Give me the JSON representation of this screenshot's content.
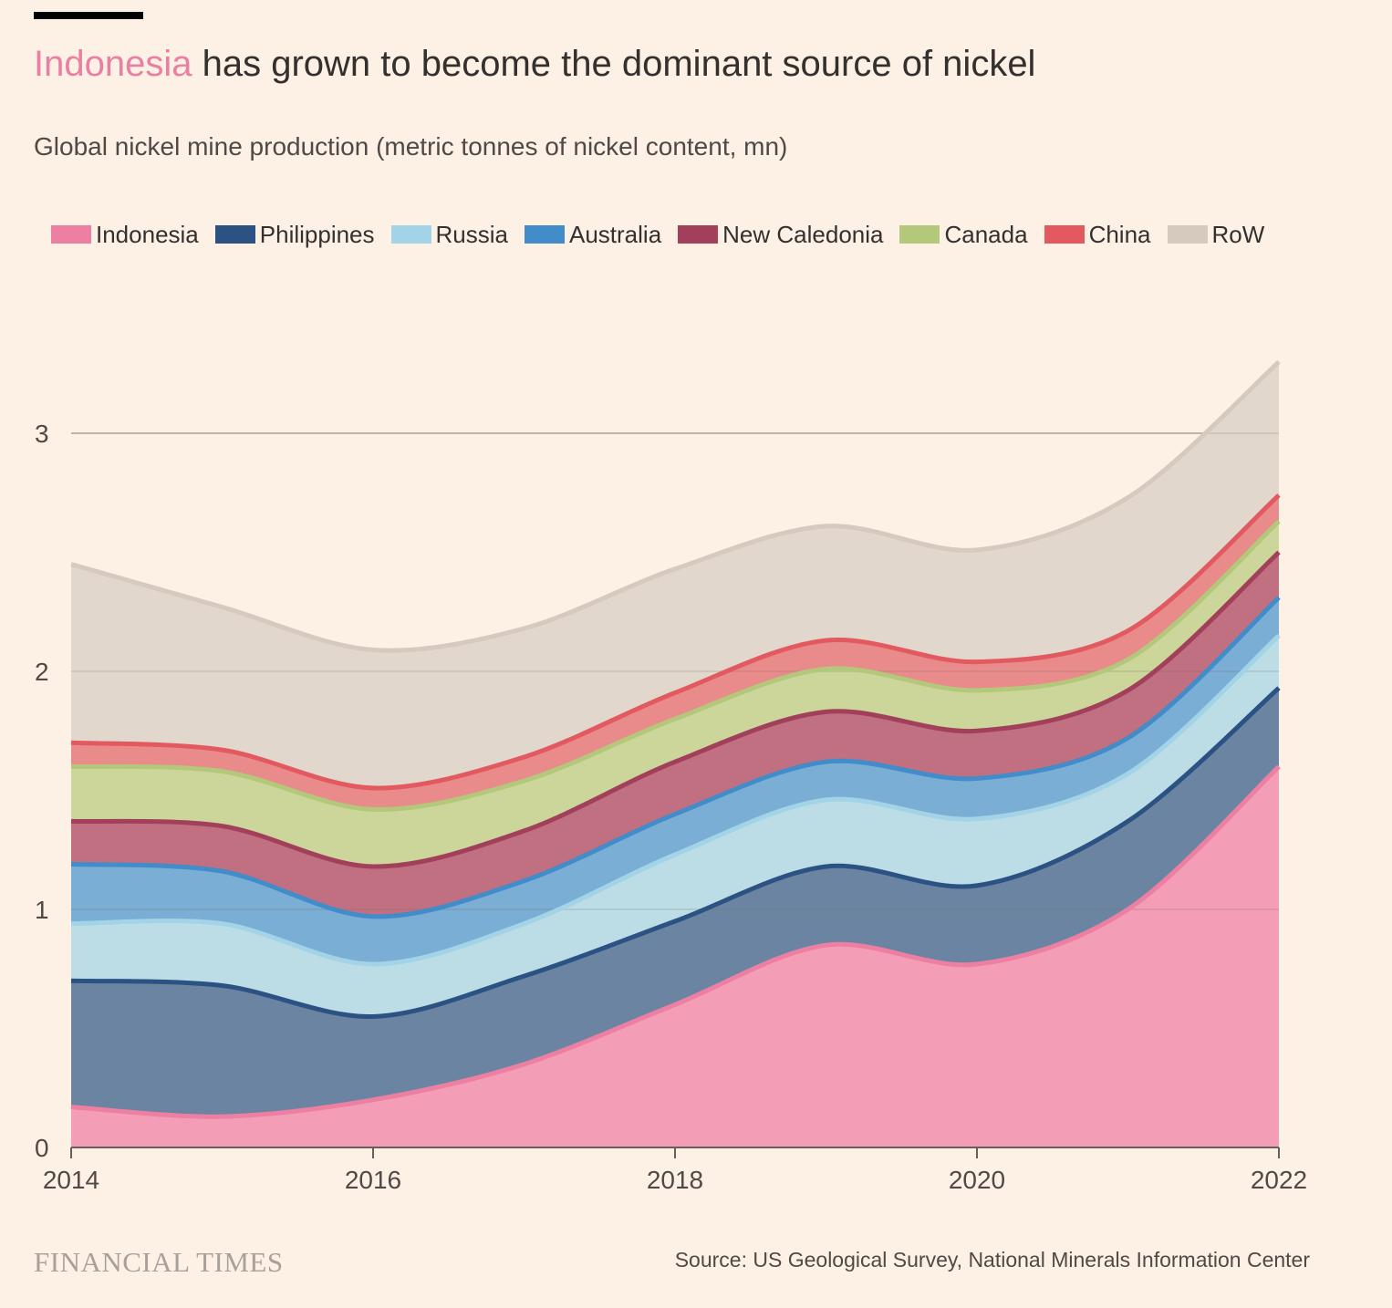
{
  "title": {
    "highlight": "Indonesia",
    "rest": " has grown to become the dominant source of nickel"
  },
  "subtitle": "Global nickel mine production (metric tonnes of nickel content, mn)",
  "footer": {
    "brand": "FINANCIAL TIMES",
    "source": "Source: US Geological Survey, National Minerals Information Center"
  },
  "chart_data": {
    "type": "area",
    "stacked": true,
    "smoothed": true,
    "x": [
      2014,
      2015,
      2016,
      2017,
      2018,
      2019,
      2020,
      2021,
      2022
    ],
    "x_ticks": [
      "2014",
      "2016",
      "2018",
      "2020",
      "2022"
    ],
    "y_ticks": [
      "0",
      "1",
      "2",
      "3"
    ],
    "ylim": [
      0,
      3.3
    ],
    "grid": true,
    "legend_position": "top",
    "series": [
      {
        "name": "Indonesia",
        "color": "#f49db6",
        "edge": "#ec7fa2",
        "values": [
          0.17,
          0.13,
          0.2,
          0.35,
          0.6,
          0.85,
          0.77,
          1.0,
          1.6
        ]
      },
      {
        "name": "Philippines",
        "color": "#6a84a1",
        "edge": "#2c5284",
        "values": [
          0.53,
          0.55,
          0.35,
          0.37,
          0.35,
          0.33,
          0.33,
          0.37,
          0.33
        ]
      },
      {
        "name": "Russia",
        "color": "#bcdde6",
        "edge": "#a3d3e6",
        "values": [
          0.24,
          0.26,
          0.22,
          0.22,
          0.28,
          0.28,
          0.28,
          0.2,
          0.22
        ]
      },
      {
        "name": "Australia",
        "color": "#7aaed5",
        "edge": "#418cc9",
        "values": [
          0.25,
          0.22,
          0.2,
          0.18,
          0.17,
          0.16,
          0.17,
          0.15,
          0.16
        ]
      },
      {
        "name": "New Caledonia",
        "color": "#c07080",
        "edge": "#a23f5b",
        "values": [
          0.18,
          0.19,
          0.21,
          0.21,
          0.22,
          0.21,
          0.2,
          0.2,
          0.19
        ]
      },
      {
        "name": "Canada",
        "color": "#ccd69b",
        "edge": "#b3c87a",
        "values": [
          0.23,
          0.23,
          0.24,
          0.21,
          0.18,
          0.18,
          0.17,
          0.13,
          0.13
        ]
      },
      {
        "name": "China",
        "color": "#e88b8a",
        "edge": "#e25a60",
        "values": [
          0.1,
          0.09,
          0.09,
          0.1,
          0.11,
          0.12,
          0.12,
          0.12,
          0.11
        ]
      },
      {
        "name": "RoW",
        "color": "#e2d7cd",
        "edge": "#d6c9bf",
        "values": [
          0.75,
          0.6,
          0.58,
          0.54,
          0.52,
          0.48,
          0.47,
          0.56,
          0.56
        ]
      }
    ]
  }
}
